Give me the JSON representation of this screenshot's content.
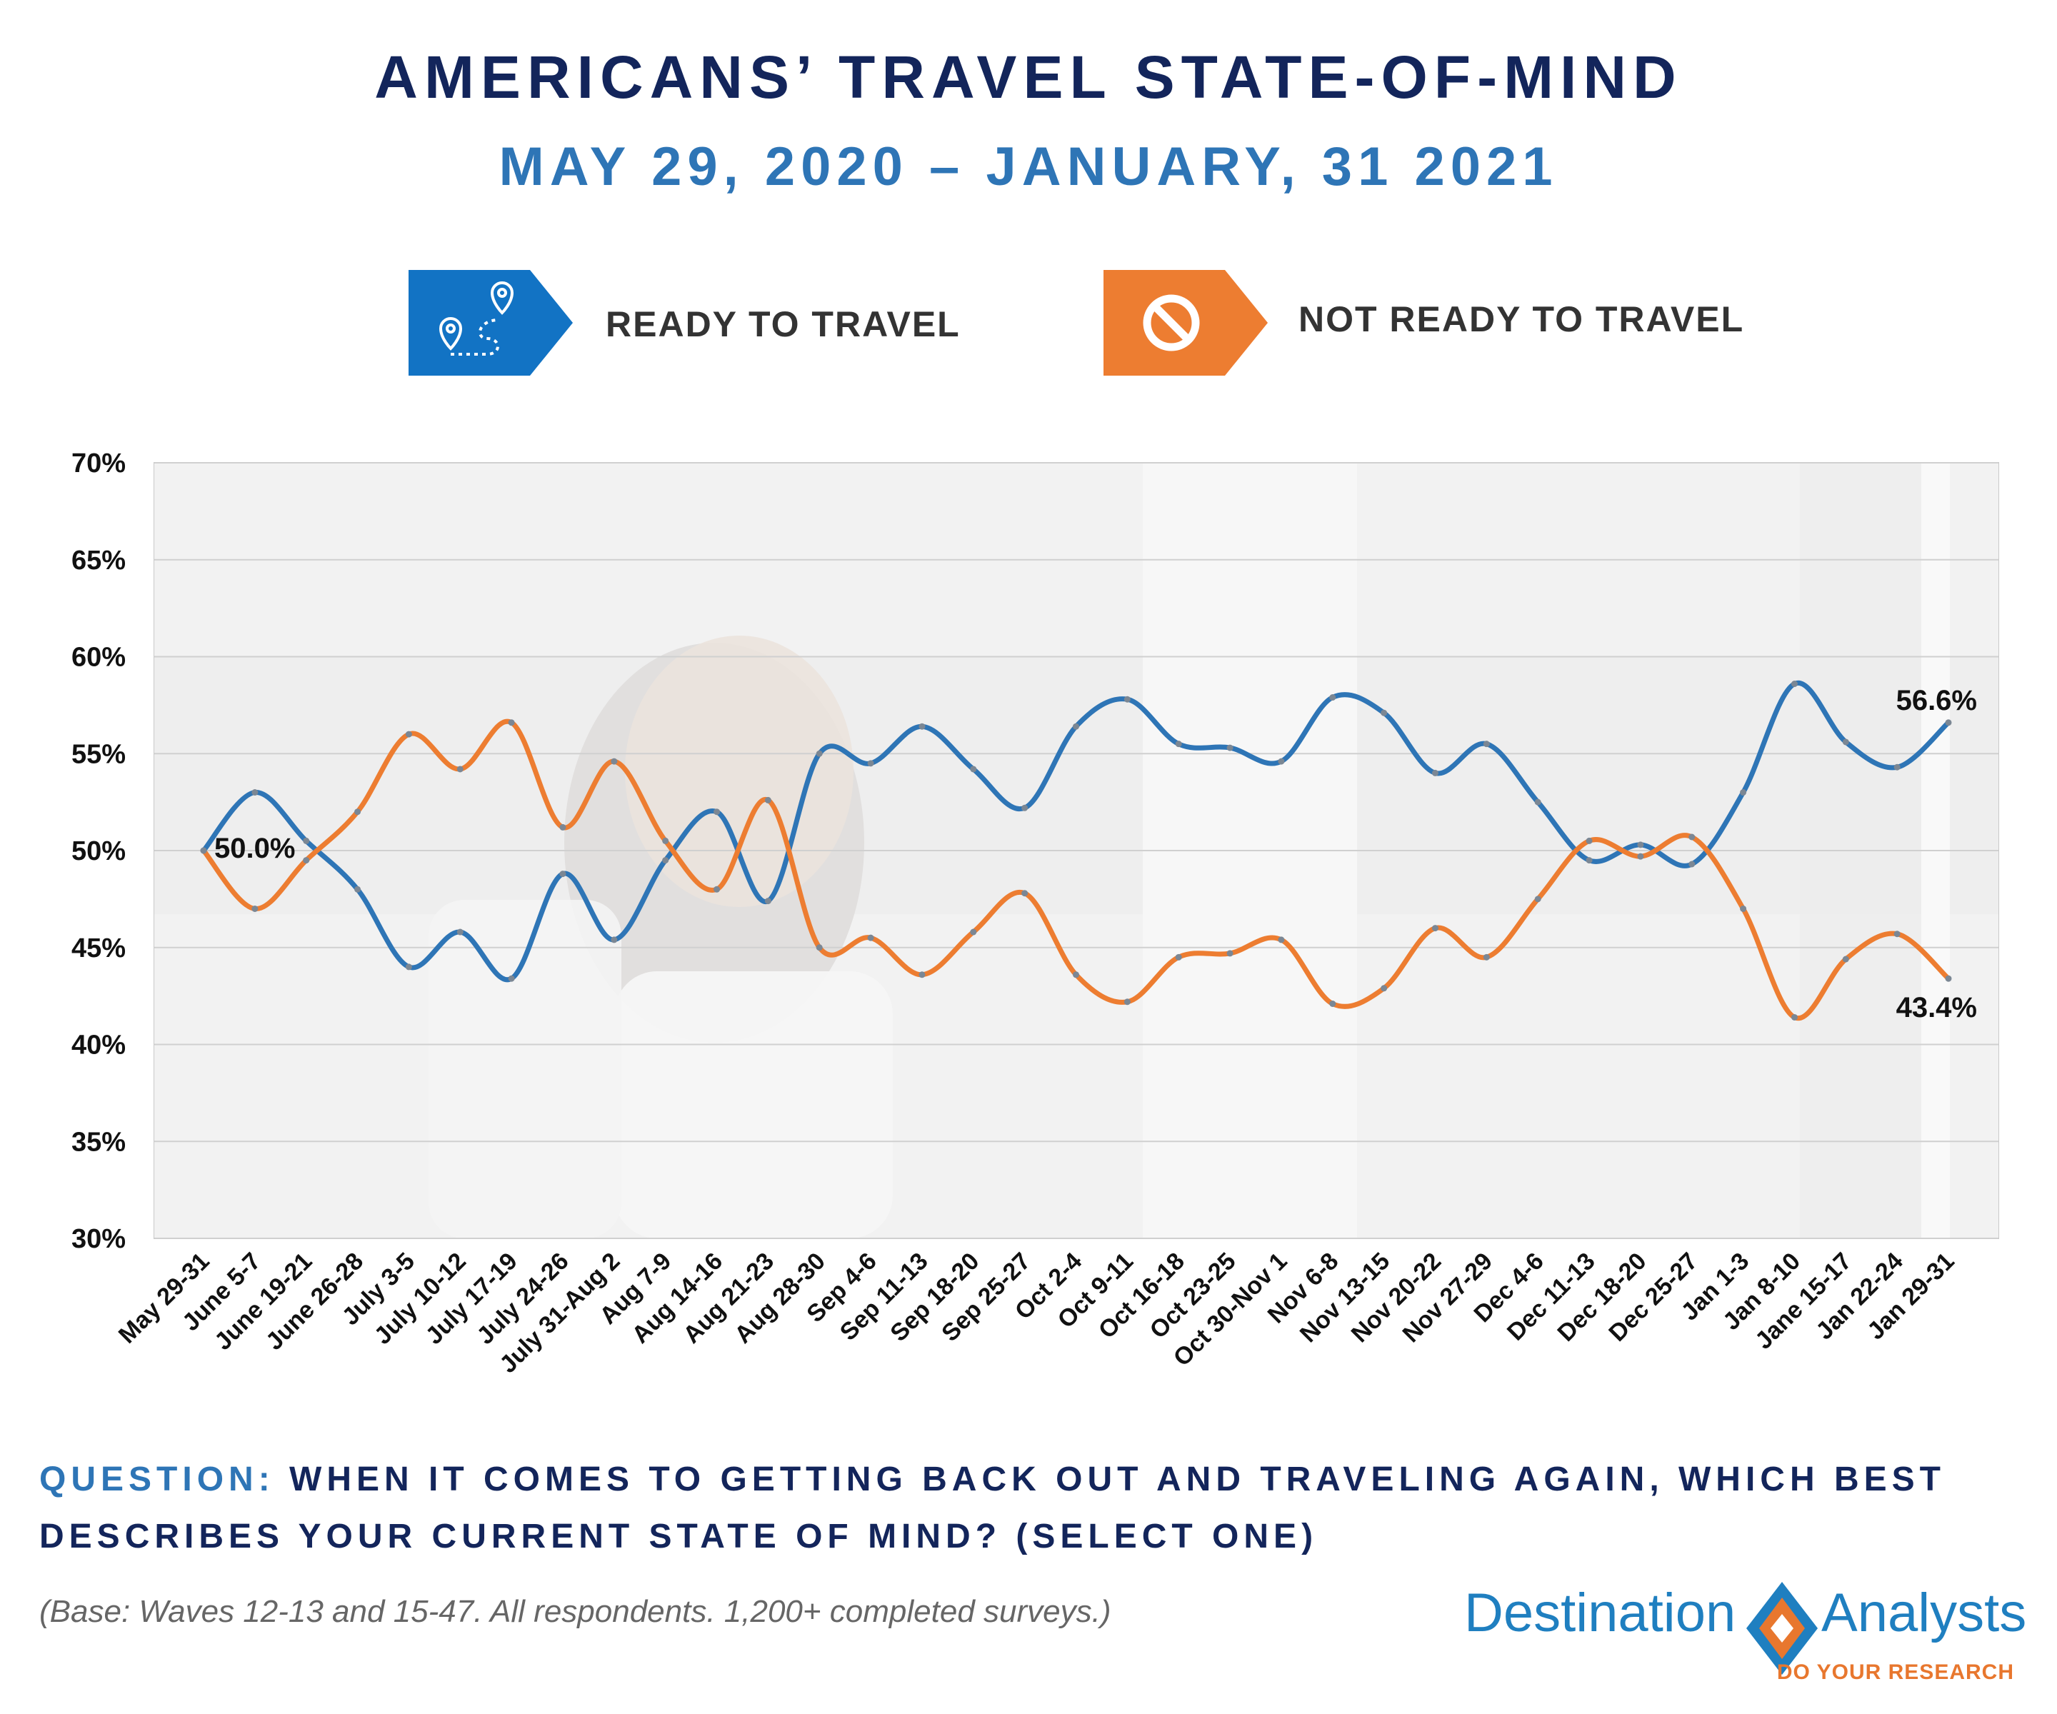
{
  "header": {
    "title": "AMERICANS’ TRAVEL STATE-OF-MIND",
    "subtitle": "MAY 29, 2020 – JANUARY, 31 2021"
  },
  "legend": [
    {
      "label": "READY TO TRAVEL",
      "color": "#2e75b6",
      "icon": "map-route-icon"
    },
    {
      "label": "NOT READY TO TRAVEL",
      "color": "#ed7d31",
      "icon": "prohibited-icon"
    }
  ],
  "chart_data": {
    "type": "line",
    "categories": [
      "May 29-31",
      "June 5-7",
      "June 19-21",
      "June 26-28",
      "July 3-5",
      "July 10-12",
      "July 17-19",
      "July 24-26",
      "July 31-Aug 2",
      "Aug 7-9",
      "Aug 14-16",
      "Aug 21-23",
      "Aug 28-30",
      "Sep 4-6",
      "Sep 11-13",
      "Sep 18-20",
      "Sep 25-27",
      "Oct 2-4",
      "Oct 9-11",
      "Oct 16-18",
      "Oct 23-25",
      "Oct 30-Nov 1",
      "Nov 6-8",
      "Nov 13-15",
      "Nov 20-22",
      "Nov 27-29",
      "Dec 4-6",
      "Dec 11-13",
      "Dec 18-20",
      "Dec 25-27",
      "Jan 1-3",
      "Jan 8-10",
      "Jane 15-17",
      "Jan 22-24",
      "Jan 29-31"
    ],
    "series": [
      {
        "name": "READY TO TRAVEL",
        "color": "#2e75b6",
        "values": [
          50.0,
          53.0,
          50.5,
          48.0,
          44.0,
          45.8,
          43.4,
          48.8,
          45.4,
          49.5,
          52.0,
          47.4,
          55.0,
          54.5,
          56.4,
          54.2,
          52.2,
          56.4,
          57.8,
          55.5,
          55.3,
          54.6,
          57.9,
          57.1,
          54.0,
          55.5,
          52.5,
          49.5,
          50.3,
          49.3,
          53.0,
          58.6,
          55.6,
          54.3,
          56.6
        ]
      },
      {
        "name": "NOT READY TO TRAVEL",
        "color": "#ed7d31",
        "values": [
          50.0,
          47.0,
          49.5,
          52.0,
          56.0,
          54.2,
          56.6,
          51.2,
          54.6,
          50.5,
          48.0,
          52.6,
          45.0,
          45.5,
          43.6,
          45.8,
          47.8,
          43.6,
          42.2,
          44.5,
          44.7,
          45.4,
          42.1,
          42.9,
          46.0,
          44.5,
          47.5,
          50.5,
          49.7,
          50.7,
          47.0,
          41.4,
          44.4,
          45.7,
          43.4
        ]
      }
    ],
    "labels": [
      {
        "series": 0,
        "index": 0,
        "text": "50.0%"
      },
      {
        "series": 0,
        "index": 34,
        "text": "56.6%"
      },
      {
        "series": 1,
        "index": 34,
        "text": "43.4%"
      }
    ],
    "yticks": [
      "30%",
      "35%",
      "40%",
      "45%",
      "50%",
      "55%",
      "60%",
      "65%",
      "70%"
    ],
    "ylim": [
      30,
      70
    ],
    "grid": true,
    "xlabel": "",
    "ylabel": ""
  },
  "question": {
    "prefix": "QUESTION:",
    "text": " WHEN IT COMES TO GETTING BACK OUT AND TRAVELING AGAIN, WHICH BEST DESCRIBES YOUR CURRENT STATE OF MIND? (SELECT ONE)"
  },
  "base_note": "(Base: Waves 12-13 and 15-47. All respondents. 1,200+ completed surveys.)",
  "logo": {
    "word_left": "Destination",
    "word_right": "Analysts",
    "tagline": "DO YOUR RESEARCH",
    "colors": {
      "blue": "#1f7fc0",
      "orange": "#e8772e"
    }
  }
}
